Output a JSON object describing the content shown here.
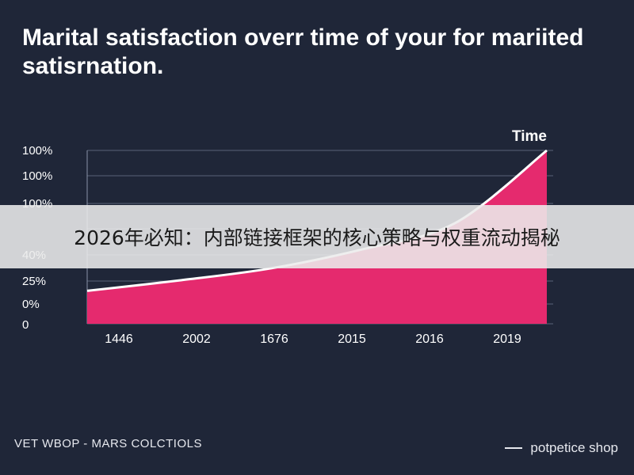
{
  "chart_data": {
    "type": "area",
    "title": "Marital satisfaction overr time of your for mariited satisrnation.",
    "series_label": "Time",
    "x_categories": [
      "1446",
      "2002",
      "1676",
      "2015",
      "2016",
      "2019"
    ],
    "y_tick_labels": [
      "100%",
      "100%",
      "100%",
      "40%",
      "25%",
      "0%",
      "0"
    ],
    "fill_color": "#e52a6e",
    "line_color": "#ffffff",
    "grid": true,
    "series": [
      {
        "values": [
          0.19,
          0.25,
          0.32,
          0.43,
          0.58,
          1.0
        ]
      }
    ]
  },
  "banner": {
    "text": "2026年必知：内部链接框架的核心策略与权重流动揭秘"
  },
  "footer": {
    "left_text": "VET WBOP - MARS COLCTIOLS",
    "right_text": "potpetice shop"
  }
}
